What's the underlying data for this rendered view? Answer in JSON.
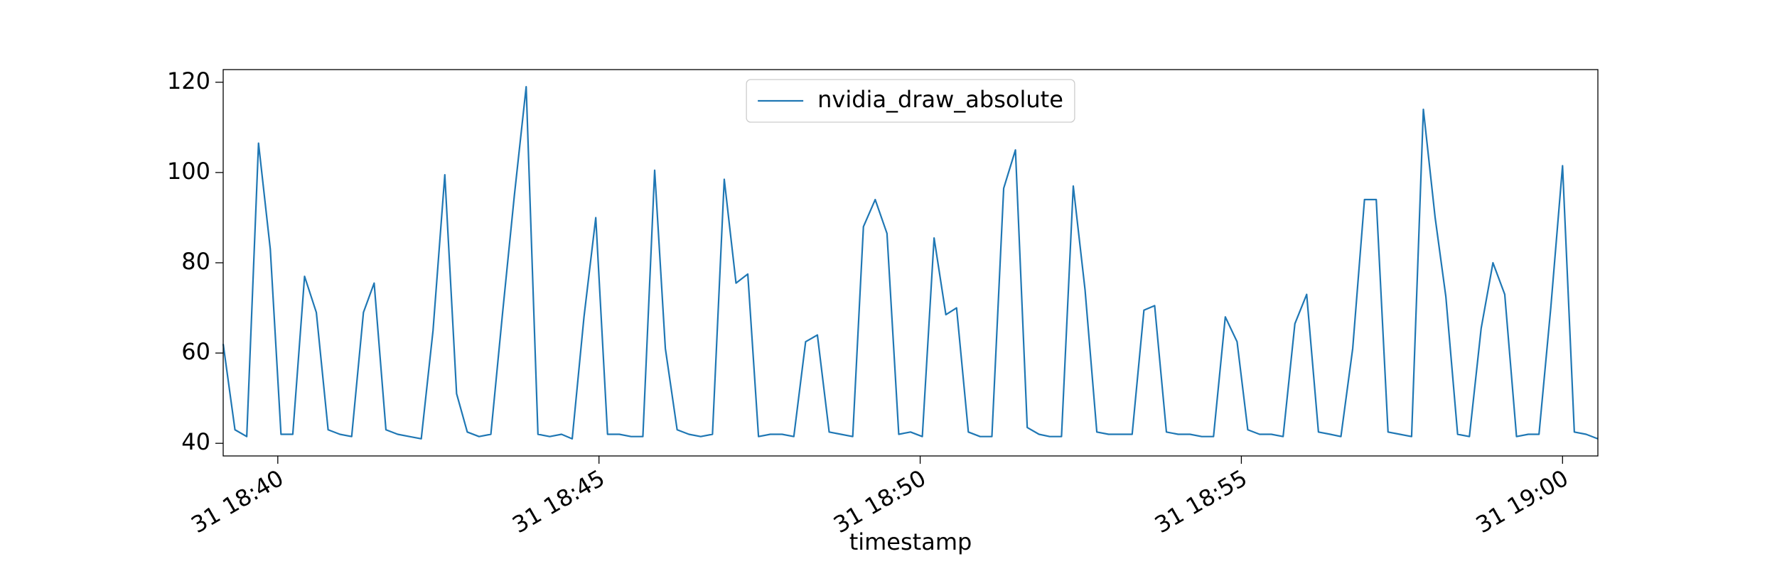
{
  "chart_data": {
    "type": "line",
    "xlabel": "timestamp",
    "x": [
      "31 18:39:09",
      "31 18:39:20",
      "31 18:39:31",
      "31 18:39:42",
      "31 18:39:53",
      "31 18:40:03",
      "31 18:40:14",
      "31 18:40:25",
      "31 18:40:36",
      "31 18:40:47",
      "31 18:40:58",
      "31 18:41:09",
      "31 18:41:20",
      "31 18:41:30",
      "31 18:41:41",
      "31 18:41:52",
      "31 18:42:03",
      "31 18:42:14",
      "31 18:42:25",
      "31 18:42:36",
      "31 18:42:47",
      "31 18:42:57",
      "31 18:43:08",
      "31 18:43:19",
      "31 18:43:30",
      "31 18:43:41",
      "31 18:43:52",
      "31 18:44:03",
      "31 18:44:14",
      "31 18:44:25",
      "31 18:44:35",
      "31 18:44:46",
      "31 18:44:57",
      "31 18:45:08",
      "31 18:45:19",
      "31 18:45:30",
      "31 18:45:41",
      "31 18:45:52",
      "31 18:46:02",
      "31 18:46:13",
      "31 18:46:24",
      "31 18:46:35",
      "31 18:46:46",
      "31 18:46:57",
      "31 18:47:08",
      "31 18:47:19",
      "31 18:47:29",
      "31 18:47:40",
      "31 18:47:51",
      "31 18:48:02",
      "31 18:48:13",
      "31 18:48:24",
      "31 18:48:35",
      "31 18:48:46",
      "31 18:48:57",
      "31 18:49:07",
      "31 18:49:18",
      "31 18:49:29",
      "31 18:49:40",
      "31 18:49:51",
      "31 18:50:02",
      "31 18:50:13",
      "31 18:50:24",
      "31 18:50:34",
      "31 18:50:45",
      "31 18:50:56",
      "31 18:51:07",
      "31 18:51:18",
      "31 18:51:29",
      "31 18:51:40",
      "31 18:51:51",
      "31 18:52:01",
      "31 18:52:12",
      "31 18:52:23",
      "31 18:52:34",
      "31 18:52:45",
      "31 18:52:56",
      "31 18:53:07",
      "31 18:53:18",
      "31 18:53:29",
      "31 18:53:39",
      "31 18:53:50",
      "31 18:54:01",
      "31 18:54:12",
      "31 18:54:23",
      "31 18:54:34",
      "31 18:54:45",
      "31 18:54:56",
      "31 18:55:06",
      "31 18:55:17",
      "31 18:55:28",
      "31 18:55:39",
      "31 18:55:50",
      "31 18:56:01",
      "31 18:56:12",
      "31 18:56:23",
      "31 18:56:33",
      "31 18:56:44",
      "31 18:56:55",
      "31 18:57:06",
      "31 18:57:17",
      "31 18:57:28",
      "31 18:57:39",
      "31 18:57:50",
      "31 18:58:01",
      "31 18:58:11",
      "31 18:58:22",
      "31 18:58:33",
      "31 18:58:44",
      "31 18:58:55",
      "31 18:59:06",
      "31 18:59:17",
      "31 18:59:28",
      "31 18:59:38",
      "31 18:59:49",
      "31 19:00:00",
      "31 19:00:11",
      "31 19:00:22",
      "31 19:00:33"
    ],
    "series": [
      {
        "name": "nvidia_draw_absolute",
        "color": "#1f77b4",
        "values": [
          62,
          43,
          41.5,
          106.5,
          83,
          42,
          42,
          77,
          69,
          43,
          42,
          41.5,
          69,
          75.5,
          43,
          42,
          41.5,
          41,
          65,
          99.5,
          51,
          42.5,
          41.5,
          42,
          69,
          95,
          119,
          42,
          41.5,
          42,
          41,
          68,
          90,
          42,
          42,
          41.5,
          41.5,
          100.5,
          61,
          43,
          42,
          41.5,
          42,
          98.5,
          75.5,
          77.5,
          41.5,
          42,
          42,
          41.5,
          62.5,
          64,
          42.5,
          42,
          41.5,
          88,
          94,
          86.5,
          42,
          42.5,
          41.5,
          85.5,
          68.5,
          70,
          42.5,
          41.5,
          41.5,
          96.5,
          105,
          43.5,
          42,
          41.5,
          41.5,
          97,
          74,
          42.5,
          42,
          42,
          42,
          69.5,
          70.5,
          42.5,
          42,
          42,
          41.5,
          41.5,
          68,
          62.5,
          43,
          42,
          42,
          41.5,
          66.5,
          73,
          42.5,
          42,
          41.5,
          61,
          94,
          94,
          42.5,
          42,
          41.5,
          114,
          90,
          72.5,
          42,
          41.5,
          65.5,
          80,
          73,
          41.5,
          42,
          42,
          70,
          101.5,
          42.5,
          42,
          41
        ]
      }
    ],
    "xlim": [
      "31 18:39:09",
      "31 19:00:33"
    ],
    "xticks": [
      "31 18:40",
      "31 18:45",
      "31 18:50",
      "31 18:55",
      "31 19:00"
    ],
    "ylim": [
      37.2,
      122.8
    ],
    "yticks": [
      40,
      60,
      80,
      100,
      120
    ],
    "grid": false,
    "legend": "upper center"
  }
}
